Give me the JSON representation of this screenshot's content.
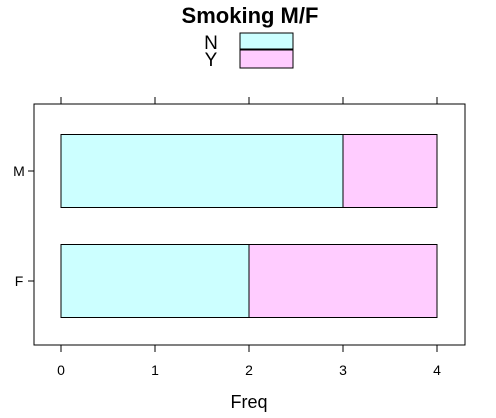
{
  "chart_data": {
    "type": "bar",
    "orientation": "horizontal",
    "stacked": true,
    "title": "Smoking M/F",
    "xlabel": "Freq",
    "ylabel": "",
    "categories": [
      "M",
      "F"
    ],
    "series": [
      {
        "name": "N",
        "values": [
          3,
          2
        ],
        "color": "#ccffff"
      },
      {
        "name": "Y",
        "values": [
          1,
          2
        ],
        "color": "#ffccff"
      }
    ],
    "xlim": [
      0,
      4
    ],
    "x_ticks": [
      0,
      1,
      2,
      3,
      4
    ],
    "grid": false,
    "legend_position": "top"
  }
}
